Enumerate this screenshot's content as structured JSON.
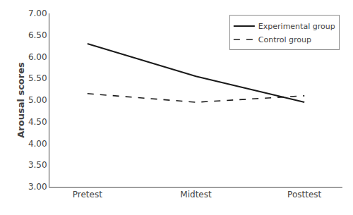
{
  "chart_data": {
    "type": "line",
    "categories": [
      "Pretest",
      "Midtest",
      "Posttest"
    ],
    "series": [
      {
        "name": "Experimental group",
        "color": "#1a1a1a",
        "line_style": "solid",
        "values": [
          6.3,
          5.55,
          4.95
        ]
      },
      {
        "name": "Control group",
        "color": "#1a1a1a",
        "line_style": "dashed",
        "values": [
          5.15,
          4.95,
          5.1
        ]
      }
    ],
    "y_label": "Arousal scores",
    "ylim": [
      3.0,
      7.0
    ],
    "yticks": [
      {
        "value": 3.0,
        "label": "3.00"
      },
      {
        "value": 3.5,
        "label": "3.50"
      },
      {
        "value": 4.0,
        "label": "4.00"
      },
      {
        "value": 4.5,
        "label": "4.50"
      },
      {
        "value": 5.0,
        "label": "5.00"
      },
      {
        "value": 5.5,
        "label": "5.50"
      },
      {
        "value": 6.0,
        "label": "6.00"
      },
      {
        "value": 6.5,
        "label": "6.50"
      },
      {
        "value": 7.0,
        "label": "7.00"
      }
    ],
    "grid": false,
    "legend": "upper right"
  }
}
